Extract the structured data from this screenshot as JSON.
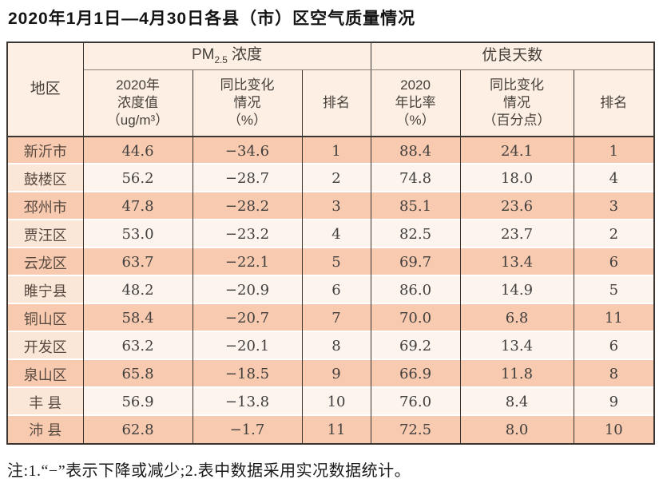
{
  "title": "2020年1月1日—4月30日各县（市）区空气质量情况",
  "note": "注:1.“−”表示下降或减少;2.表中数据采用实况数据统计。",
  "colors": {
    "row_salmon": "#f8cab0",
    "row_light": "#fdf4ee",
    "region_even_bg": "#fbe7d8",
    "header_bg": "#fdefe4",
    "grid_border": "#3a3531",
    "number_text": "#42403e",
    "region_text": "#584a41"
  },
  "table": {
    "region_header": "地区",
    "pm25_group": {
      "prefix": "PM",
      "sub": "2.5",
      "suffix": " 浓度"
    },
    "good_days_group": "优良天数",
    "headers": {
      "pm_value": "2020年\n浓度值\n（ug/m³）",
      "pm_change": "同比变化\n情况\n（%）",
      "pm_rank": "排名",
      "good_ratio": "2020\n年比率\n（%）",
      "good_change": "同比变化\n情况\n（百分点）",
      "good_rank": "排名"
    },
    "rows": [
      {
        "region": "新沂市",
        "pm_value": "44.6",
        "pm_change": "−34.6",
        "pm_rank": "1",
        "good_ratio": "88.4",
        "good_change": "24.1",
        "good_rank": "1"
      },
      {
        "region": "鼓楼区",
        "pm_value": "56.2",
        "pm_change": "−28.7",
        "pm_rank": "2",
        "good_ratio": "74.8",
        "good_change": "18.0",
        "good_rank": "4"
      },
      {
        "region": "邳州市",
        "pm_value": "47.8",
        "pm_change": "−28.2",
        "pm_rank": "3",
        "good_ratio": "85.1",
        "good_change": "23.6",
        "good_rank": "3"
      },
      {
        "region": "贾汪区",
        "pm_value": "53.0",
        "pm_change": "−23.2",
        "pm_rank": "4",
        "good_ratio": "82.5",
        "good_change": "23.7",
        "good_rank": "2"
      },
      {
        "region": "云龙区",
        "pm_value": "63.7",
        "pm_change": "−22.1",
        "pm_rank": "5",
        "good_ratio": "69.7",
        "good_change": "13.4",
        "good_rank": "6"
      },
      {
        "region": "睢宁县",
        "pm_value": "48.2",
        "pm_change": "−20.9",
        "pm_rank": "6",
        "good_ratio": "86.0",
        "good_change": "14.9",
        "good_rank": "5"
      },
      {
        "region": "铜山区",
        "pm_value": "58.4",
        "pm_change": "−20.7",
        "pm_rank": "7",
        "good_ratio": "70.0",
        "good_change": "6.8",
        "good_rank": "11"
      },
      {
        "region": "开发区",
        "pm_value": "63.2",
        "pm_change": "−20.1",
        "pm_rank": "8",
        "good_ratio": "69.2",
        "good_change": "13.4",
        "good_rank": "6"
      },
      {
        "region": "泉山区",
        "pm_value": "65.8",
        "pm_change": "−18.5",
        "pm_rank": "9",
        "good_ratio": "66.9",
        "good_change": "11.8",
        "good_rank": "8"
      },
      {
        "region": "丰 县",
        "pm_value": "56.9",
        "pm_change": "−13.8",
        "pm_rank": "10",
        "good_ratio": "76.0",
        "good_change": "8.4",
        "good_rank": "9"
      },
      {
        "region": "沛 县",
        "pm_value": "62.8",
        "pm_change": "−1.7",
        "pm_rank": "11",
        "good_ratio": "72.5",
        "good_change": "8.0",
        "good_rank": "10"
      }
    ]
  }
}
